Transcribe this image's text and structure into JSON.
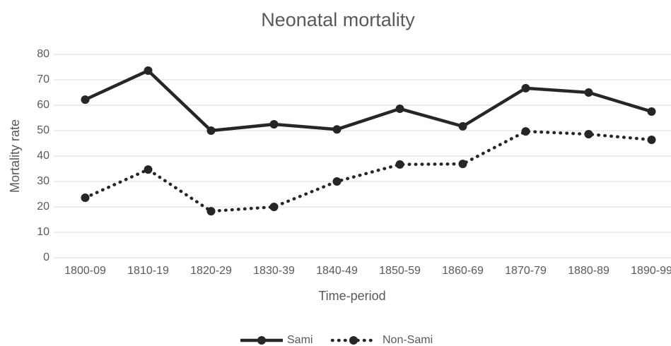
{
  "chart_data": {
    "type": "line",
    "title": "Neonatal mortality",
    "x_label": "Time-period",
    "y_label": "Mortality rate",
    "categories": [
      "1800-09",
      "1810-19",
      "1820-29",
      "1830-39",
      "1840-49",
      "1850-59",
      "1860-69",
      "1870-79",
      "1880-89",
      "1890-99"
    ],
    "series": [
      {
        "name": "Sami",
        "color": "#262626",
        "style": "solid",
        "values": [
          62.2,
          73.6,
          50,
          52.5,
          50.5,
          58.6,
          51.7,
          66.7,
          65,
          57.5
        ]
      },
      {
        "name": "Non-Sami",
        "color": "#262626",
        "style": "dotted",
        "values": [
          23.6,
          34.7,
          18.3,
          20,
          30,
          36.7,
          36.9,
          49.7,
          48.6,
          46.4
        ]
      }
    ],
    "ylim": [
      0,
      80
    ],
    "yticks": [
      0,
      10,
      20,
      30,
      40,
      50,
      60,
      70,
      80
    ],
    "grid": true,
    "legend": "bottom"
  }
}
